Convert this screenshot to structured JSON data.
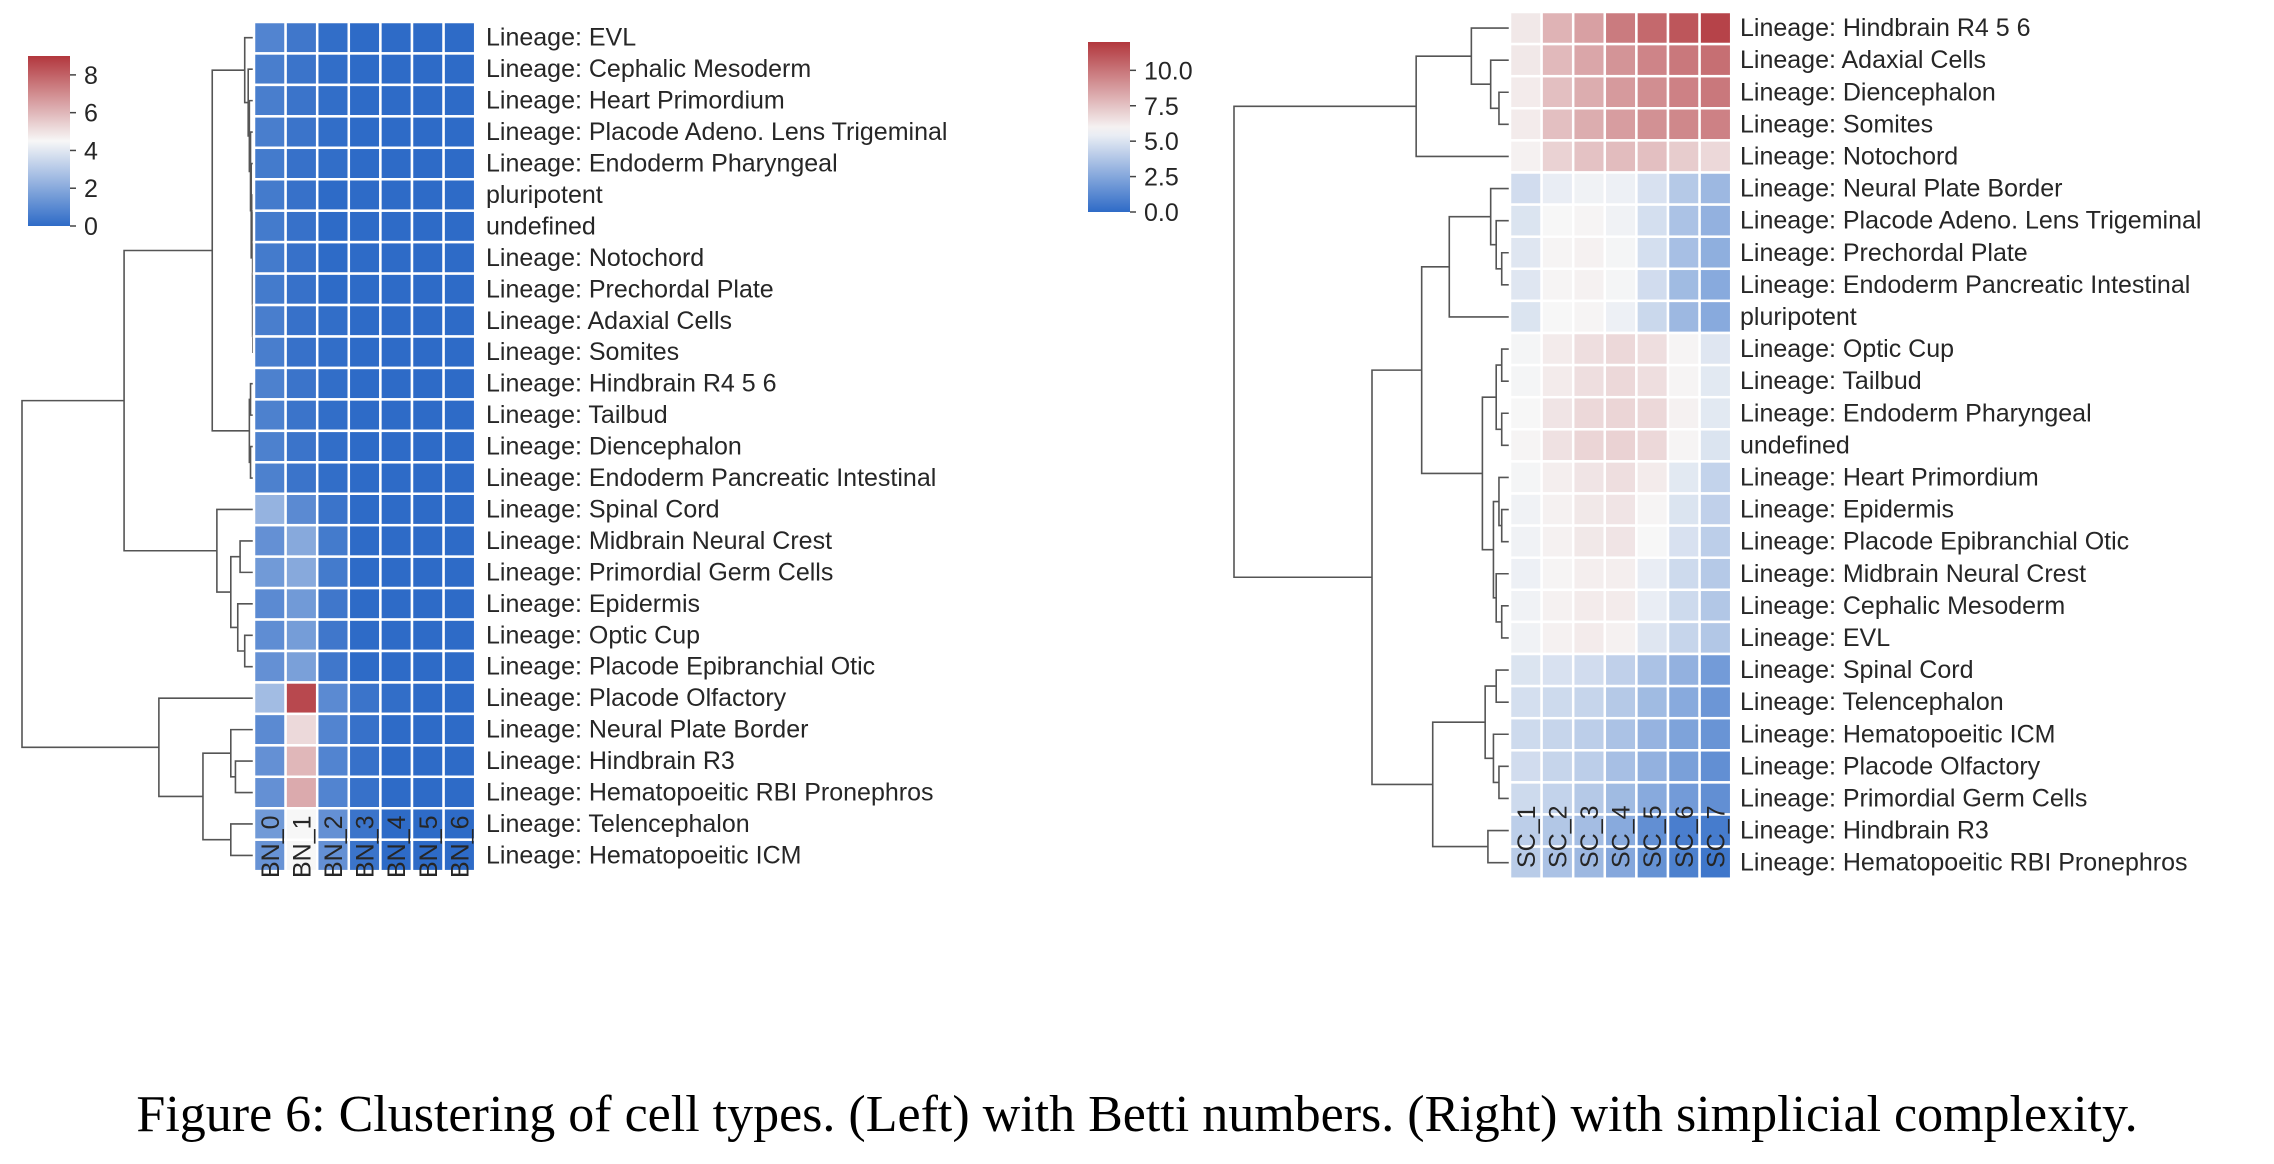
{
  "caption": "Figure 6: Clustering of cell types. (Left) with Betti numbers. (Right) with simplicial complexity.",
  "chart_data": [
    {
      "type": "heatmap",
      "columns": [
        "BN_0",
        "BN_1",
        "BN_2",
        "BN_3",
        "BN_4",
        "BN_5",
        "BN_6"
      ],
      "rows": [
        "Lineage: EVL",
        "Lineage: Cephalic Mesoderm",
        "Lineage: Heart Primordium",
        "Lineage: Placode Adeno. Lens Trigeminal",
        "Lineage: Endoderm Pharyngeal",
        "pluripotent",
        "undefined",
        "Lineage: Notochord",
        "Lineage: Prechordal Plate",
        "Lineage: Adaxial Cells",
        "Lineage: Somites",
        "Lineage: Hindbrain R4 5 6",
        "Lineage: Tailbud",
        "Lineage: Diencephalon",
        "Lineage: Endoderm Pancreatic Intestinal",
        "Lineage: Spinal Cord",
        "Lineage: Midbrain Neural Crest",
        "Lineage: Primordial Germ Cells",
        "Lineage: Epidermis",
        "Lineage: Optic Cup",
        "Lineage: Placode Epibranchial Otic",
        "Lineage: Placode Olfactory",
        "Lineage: Neural Plate Border",
        "Lineage: Hindbrain R3",
        "Lineage: Hematopoeitic RBI Pronephros",
        "Lineage: Telencephalon",
        "Lineage: Hematopoeitic ICM"
      ],
      "values": [
        [
          0.8,
          0.4,
          0.1,
          0,
          0,
          0,
          0
        ],
        [
          0.6,
          0.3,
          0.1,
          0,
          0,
          0,
          0
        ],
        [
          0.6,
          0.3,
          0.1,
          0,
          0,
          0,
          0
        ],
        [
          0.6,
          0.3,
          0.1,
          0,
          0,
          0,
          0
        ],
        [
          0.5,
          0.2,
          0.1,
          0,
          0,
          0,
          0
        ],
        [
          0.5,
          0.2,
          0,
          0,
          0,
          0,
          0
        ],
        [
          0.5,
          0.2,
          0,
          0,
          0,
          0,
          0
        ],
        [
          0.5,
          0.2,
          0,
          0,
          0,
          0,
          0
        ],
        [
          0.5,
          0.2,
          0,
          0,
          0,
          0,
          0
        ],
        [
          0.6,
          0.2,
          0.1,
          0,
          0,
          0,
          0
        ],
        [
          0.6,
          0.2,
          0.1,
          0,
          0,
          0,
          0
        ],
        [
          0.7,
          0.3,
          0.1,
          0,
          0,
          0,
          0
        ],
        [
          0.7,
          0.3,
          0.1,
          0,
          0,
          0,
          0
        ],
        [
          0.7,
          0.3,
          0.1,
          0,
          0,
          0,
          0
        ],
        [
          0.7,
          0.3,
          0.1,
          0,
          0,
          0,
          0
        ],
        [
          2.3,
          1.0,
          0.3,
          0,
          0,
          0,
          0
        ],
        [
          1.2,
          2.0,
          0.5,
          0,
          0,
          0,
          0
        ],
        [
          1.5,
          2.0,
          0.5,
          0,
          0,
          0,
          0
        ],
        [
          1.0,
          1.5,
          0.4,
          0,
          0,
          0,
          0
        ],
        [
          1.1,
          1.6,
          0.4,
          0,
          0,
          0,
          0
        ],
        [
          1.2,
          1.7,
          0.4,
          0,
          0,
          0,
          0
        ],
        [
          2.6,
          8.6,
          1.0,
          0.3,
          0.1,
          0,
          0
        ],
        [
          1.0,
          5.2,
          0.8,
          0.2,
          0,
          0,
          0
        ],
        [
          1.2,
          6.0,
          0.8,
          0.2,
          0,
          0,
          0
        ],
        [
          1.2,
          6.3,
          0.8,
          0.2,
          0,
          0,
          0
        ],
        [
          1.5,
          4.5,
          1.2,
          0.3,
          0,
          0,
          0
        ],
        [
          1.3,
          4.5,
          1.2,
          0.3,
          0,
          0,
          0
        ]
      ],
      "colorbar": {
        "min": 0,
        "max": 9,
        "center": 4.5,
        "ticks": [
          "0",
          "2",
          "4",
          "6",
          "8"
        ],
        "tick_values": [
          0,
          2,
          4,
          6,
          8
        ]
      },
      "cmap": {
        "low": "#2e6bc7",
        "mid": "#f7f7f7",
        "high": "#b2373d"
      },
      "dendrogram": "rows, left side"
    },
    {
      "type": "heatmap",
      "columns": [
        "SC_1",
        "SC_2",
        "SC_3",
        "SC_4",
        "SC_5",
        "SC_6",
        "SC_7"
      ],
      "rows": [
        "Lineage: Hindbrain R4 5 6",
        "Lineage: Adaxial Cells",
        "Lineage: Diencephalon",
        "Lineage: Somites",
        "Lineage: Notochord",
        "Lineage: Neural Plate Border",
        "Lineage: Placode Adeno. Lens Trigeminal",
        "Lineage: Prechordal Plate",
        "Lineage: Endoderm Pancreatic Intestinal",
        "pluripotent",
        "Lineage: Optic Cup",
        "Lineage: Tailbud",
        "Lineage: Endoderm Pharyngeal",
        "undefined",
        "Lineage: Heart Primordium",
        "Lineage: Epidermis",
        "Lineage: Placode Epibranchial Otic",
        "Lineage: Midbrain Neural Crest",
        "Lineage: Cephalic Mesoderm",
        "Lineage: EVL",
        "Lineage: Spinal Cord",
        "Lineage: Telencephalon",
        "Lineage: Hematopoeitic ICM",
        "Lineage: Placode Olfactory",
        "Lineage: Primordial Germ Cells",
        "Lineage: Hindbrain R3",
        "Lineage: Hematopoeitic RBI Pronephros"
      ],
      "values": [
        [
          6.3,
          8.0,
          8.6,
          9.8,
          10.4,
          11.0,
          11.6
        ],
        [
          6.3,
          7.8,
          8.4,
          9.0,
          9.5,
          9.9,
          10.2
        ],
        [
          6.2,
          7.6,
          8.2,
          8.8,
          9.2,
          9.6,
          9.9
        ],
        [
          6.2,
          7.6,
          8.2,
          8.7,
          9.1,
          9.4,
          9.6
        ],
        [
          6.0,
          7.0,
          7.5,
          7.7,
          7.6,
          7.2,
          6.8
        ],
        [
          4.7,
          5.4,
          5.6,
          5.5,
          4.9,
          3.9,
          3.2
        ],
        [
          5.0,
          5.8,
          5.9,
          5.6,
          4.8,
          3.6,
          2.9
        ],
        [
          5.1,
          5.9,
          6.0,
          5.7,
          4.8,
          3.5,
          2.8
        ],
        [
          5.1,
          5.9,
          6.0,
          5.7,
          4.7,
          3.3,
          2.6
        ],
        [
          5.0,
          5.8,
          5.9,
          5.5,
          4.5,
          3.2,
          2.6
        ],
        [
          5.7,
          6.2,
          6.6,
          6.8,
          6.6,
          5.9,
          5.1
        ],
        [
          5.7,
          6.2,
          6.6,
          6.8,
          6.6,
          5.9,
          5.2
        ],
        [
          5.8,
          6.4,
          6.8,
          6.9,
          6.8,
          6.0,
          5.2
        ],
        [
          5.9,
          6.5,
          6.9,
          7.0,
          6.8,
          5.9,
          5.0
        ],
        [
          5.7,
          6.1,
          6.4,
          6.6,
          6.2,
          5.2,
          4.3
        ],
        [
          5.6,
          6.0,
          6.3,
          6.4,
          5.9,
          5.0,
          4.2
        ],
        [
          5.6,
          6.0,
          6.3,
          6.4,
          5.8,
          4.9,
          4.1
        ],
        [
          5.5,
          5.9,
          6.1,
          6.1,
          5.4,
          4.6,
          3.9
        ],
        [
          5.6,
          6.0,
          6.2,
          6.2,
          5.4,
          4.6,
          3.8
        ],
        [
          5.6,
          6.0,
          6.2,
          6.0,
          5.1,
          4.4,
          3.8
        ],
        [
          5.0,
          4.9,
          4.7,
          4.2,
          3.6,
          2.9,
          2.0
        ],
        [
          4.8,
          4.6,
          4.4,
          3.9,
          3.3,
          2.6,
          1.8
        ],
        [
          4.6,
          4.4,
          4.1,
          3.6,
          3.0,
          2.3,
          1.7
        ],
        [
          4.7,
          4.4,
          4.1,
          3.5,
          2.9,
          2.2,
          1.5
        ],
        [
          4.6,
          4.3,
          3.9,
          3.3,
          2.6,
          2.0,
          1.5
        ],
        [
          4.1,
          3.8,
          3.4,
          2.6,
          1.5,
          0.8,
          0.7
        ],
        [
          4.0,
          3.6,
          3.2,
          2.5,
          1.6,
          0.9,
          0.5
        ]
      ],
      "colorbar": {
        "min": 0,
        "max": 12,
        "center": 5.8,
        "ticks": [
          "0.0",
          "2.5",
          "5.0",
          "7.5",
          "10.0"
        ],
        "tick_values": [
          0,
          2.5,
          5,
          7.5,
          10
        ]
      },
      "cmap": {
        "low": "#2e6bc7",
        "mid": "#f7f7f7",
        "high": "#b2373d"
      },
      "dendrogram": "rows, left side"
    }
  ]
}
